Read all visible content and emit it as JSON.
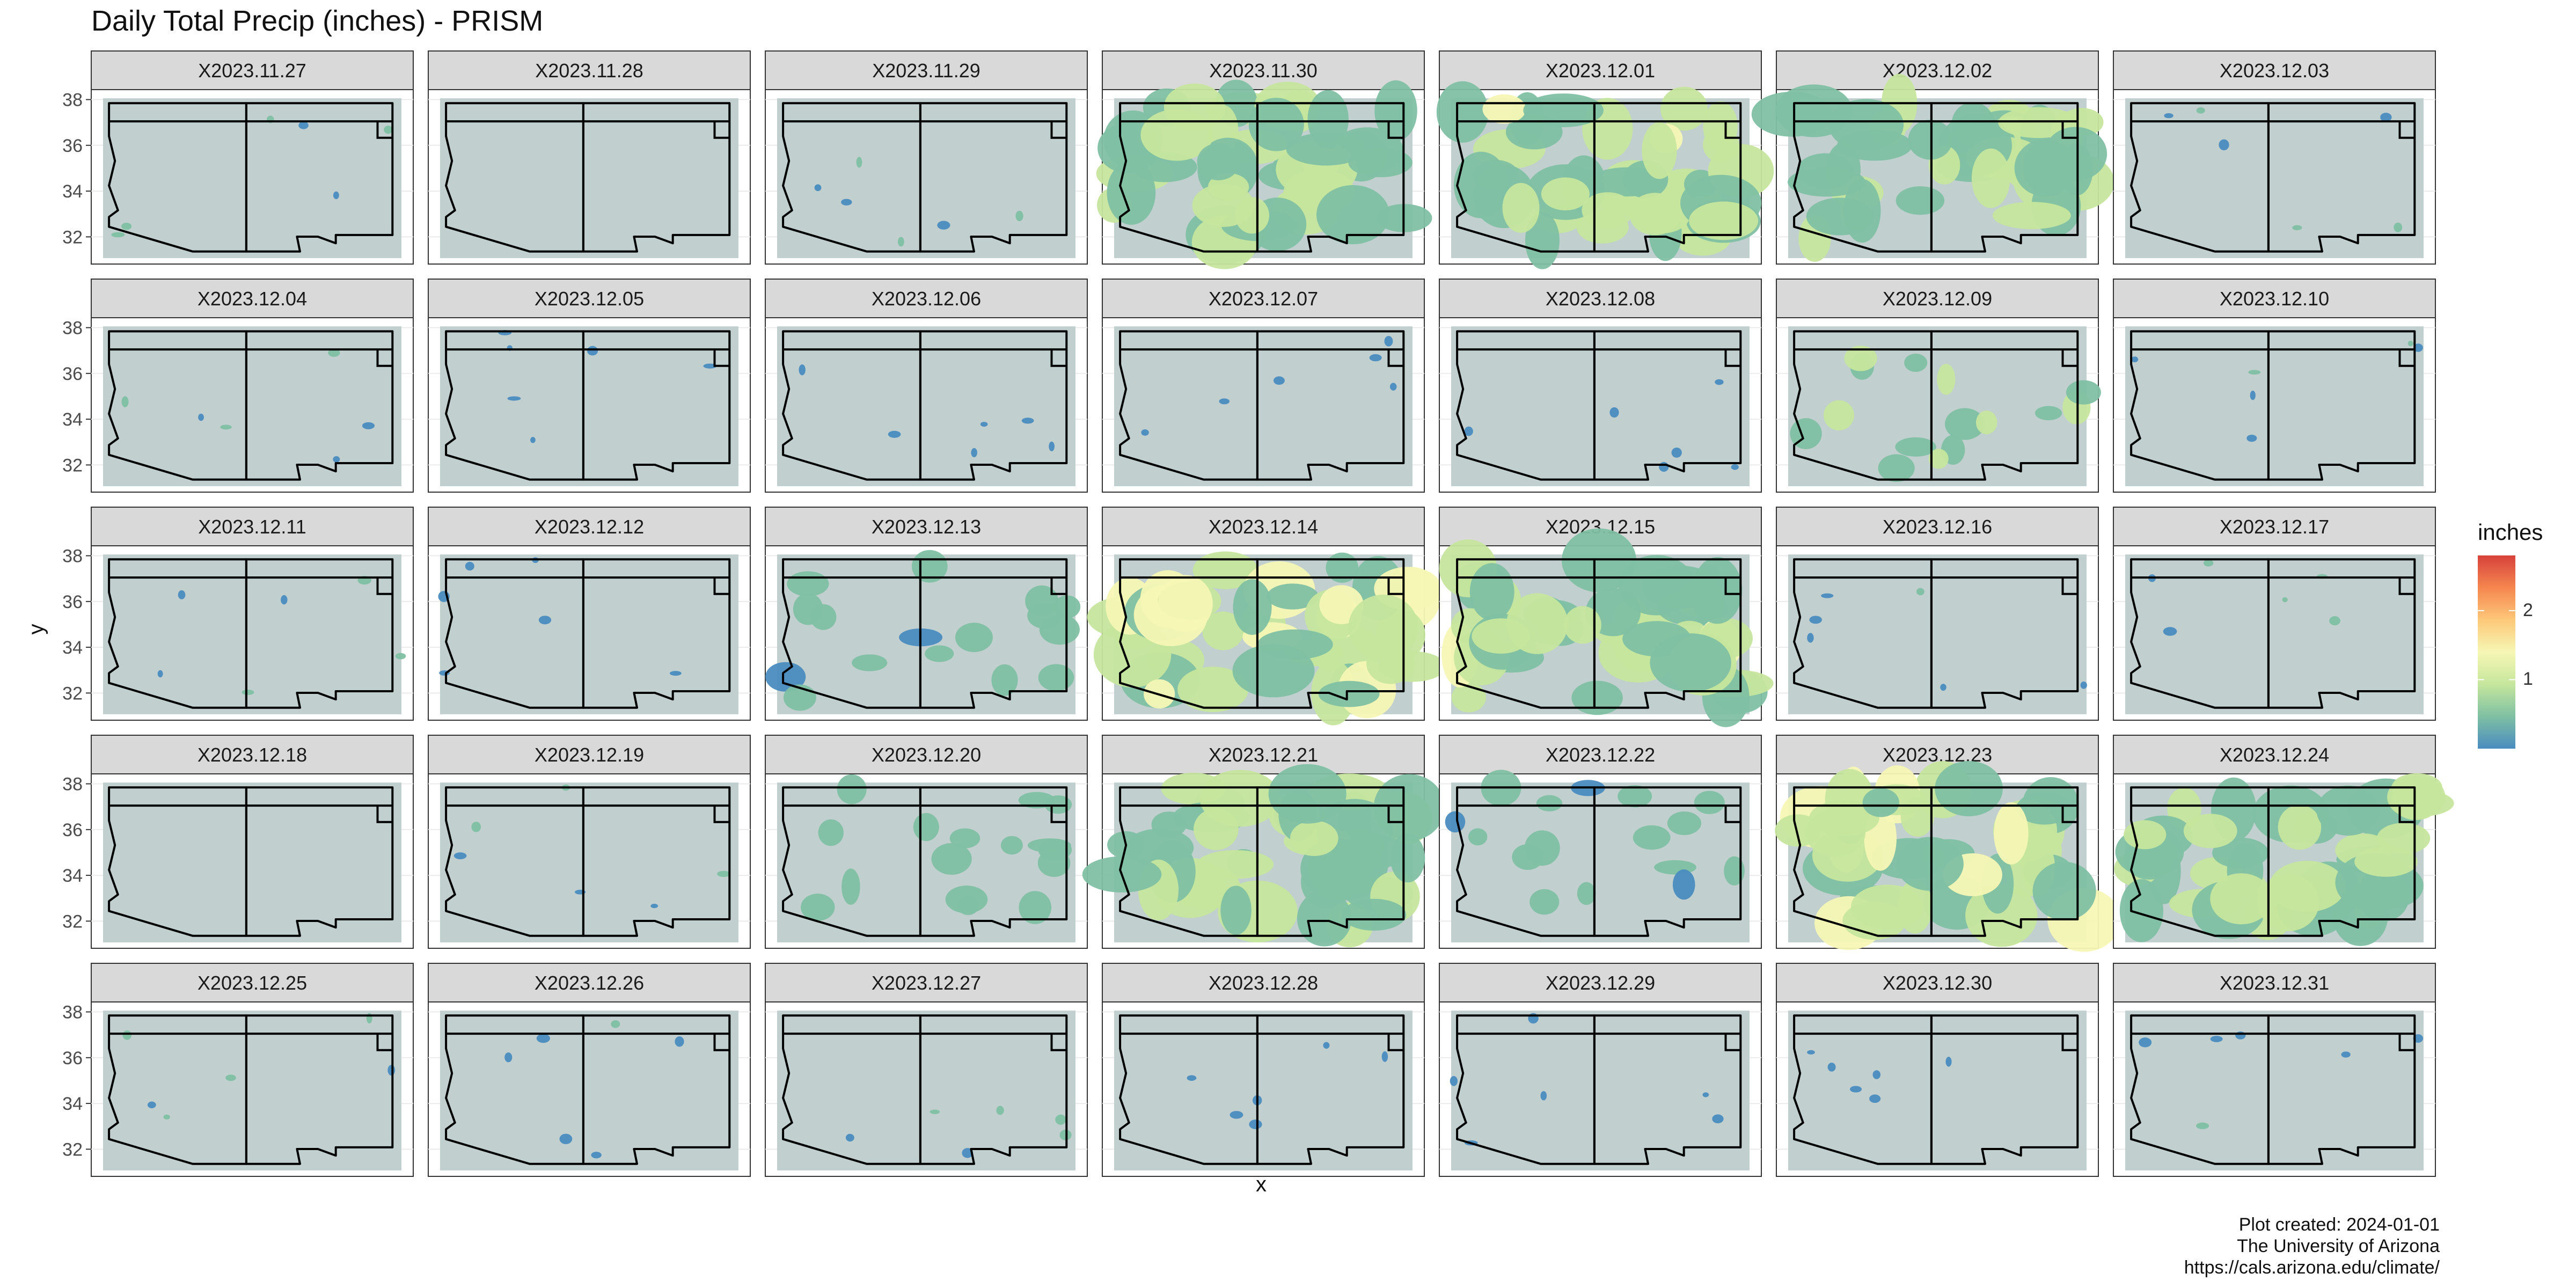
{
  "title": "Daily Total Precip (inches) - PRISM",
  "xlabel": "x",
  "ylabel": "y",
  "caption": {
    "line1": "Plot created: 2024-01-01",
    "line2": "The University of Arizona",
    "line3": "https://cals.arizona.edu/climate/"
  },
  "legend": {
    "title": "inches",
    "ticks": [
      "1",
      "2"
    ],
    "tick_values": [
      1,
      2
    ],
    "range": [
      0,
      2.8
    ],
    "colors": [
      "#4a8cc0",
      "#7fc0a3",
      "#c6e69d",
      "#f6f7b4",
      "#fdc879",
      "#f5864f",
      "#d7413b"
    ]
  },
  "colors": {
    "panel_bg": "#ffffff",
    "strip_bg": "#d9d9d9",
    "land": "#c1cfcf",
    "grid": "#ebebeb",
    "outline": "#000000",
    "low_precip": "#4a8cc0"
  },
  "chart_data": {
    "type": "heatmap",
    "facet_layout": "5 rows x 7 columns",
    "y_ticks": [
      "32",
      "34",
      "36",
      "38"
    ],
    "y_tick_values": [
      32,
      34,
      36,
      38
    ],
    "ylim": [
      31,
      38.2
    ],
    "x_ticks": [],
    "grid": true,
    "legend_position": "right",
    "panels": [
      {
        "label": "X2023.11.27",
        "coverage": "scattered",
        "max_inches": 0.5
      },
      {
        "label": "X2023.11.28",
        "coverage": "none",
        "max_inches": 0
      },
      {
        "label": "X2023.11.29",
        "coverage": "scattered",
        "max_inches": 0.3
      },
      {
        "label": "X2023.11.30",
        "coverage": "widespread",
        "max_inches": 1.0
      },
      {
        "label": "X2023.12.01",
        "coverage": "widespread",
        "max_inches": 1.2
      },
      {
        "label": "X2023.12.02",
        "coverage": "widespread",
        "max_inches": 1.0
      },
      {
        "label": "X2023.12.03",
        "coverage": "scattered",
        "max_inches": 0.4
      },
      {
        "label": "X2023.12.04",
        "coverage": "scattered",
        "max_inches": 0.4
      },
      {
        "label": "X2023.12.05",
        "coverage": "scattered",
        "max_inches": 0.2
      },
      {
        "label": "X2023.12.06",
        "coverage": "scattered",
        "max_inches": 0.2
      },
      {
        "label": "X2023.12.07",
        "coverage": "scattered",
        "max_inches": 0.3
      },
      {
        "label": "X2023.12.08",
        "coverage": "scattered",
        "max_inches": 0.2
      },
      {
        "label": "X2023.12.09",
        "coverage": "moderate",
        "max_inches": 0.8
      },
      {
        "label": "X2023.12.10",
        "coverage": "scattered",
        "max_inches": 0.4
      },
      {
        "label": "X2023.12.11",
        "coverage": "scattered",
        "max_inches": 0.4
      },
      {
        "label": "X2023.12.12",
        "coverage": "scattered",
        "max_inches": 0.2
      },
      {
        "label": "X2023.12.13",
        "coverage": "moderate",
        "max_inches": 0.6
      },
      {
        "label": "X2023.12.14",
        "coverage": "widespread",
        "max_inches": 1.6
      },
      {
        "label": "X2023.12.15",
        "coverage": "widespread",
        "max_inches": 1.2
      },
      {
        "label": "X2023.12.16",
        "coverage": "scattered",
        "max_inches": 0.3
      },
      {
        "label": "X2023.12.17",
        "coverage": "scattered",
        "max_inches": 0.3
      },
      {
        "label": "X2023.12.18",
        "coverage": "none",
        "max_inches": 0
      },
      {
        "label": "X2023.12.19",
        "coverage": "scattered",
        "max_inches": 0.3
      },
      {
        "label": "X2023.12.20",
        "coverage": "moderate",
        "max_inches": 0.6
      },
      {
        "label": "X2023.12.21",
        "coverage": "widespread",
        "max_inches": 1.0
      },
      {
        "label": "X2023.12.22",
        "coverage": "moderate",
        "max_inches": 0.6
      },
      {
        "label": "X2023.12.23",
        "coverage": "widespread",
        "max_inches": 1.6
      },
      {
        "label": "X2023.12.24",
        "coverage": "widespread",
        "max_inches": 1.2
      },
      {
        "label": "X2023.12.25",
        "coverage": "scattered",
        "max_inches": 0.4
      },
      {
        "label": "X2023.12.26",
        "coverage": "scattered",
        "max_inches": 0.3
      },
      {
        "label": "X2023.12.27",
        "coverage": "scattered",
        "max_inches": 0.4
      },
      {
        "label": "X2023.12.28",
        "coverage": "scattered",
        "max_inches": 0.2
      },
      {
        "label": "X2023.12.29",
        "coverage": "scattered",
        "max_inches": 0.2
      },
      {
        "label": "X2023.12.30",
        "coverage": "scattered",
        "max_inches": 0.3
      },
      {
        "label": "X2023.12.31",
        "coverage": "scattered",
        "max_inches": 0.3
      }
    ]
  }
}
